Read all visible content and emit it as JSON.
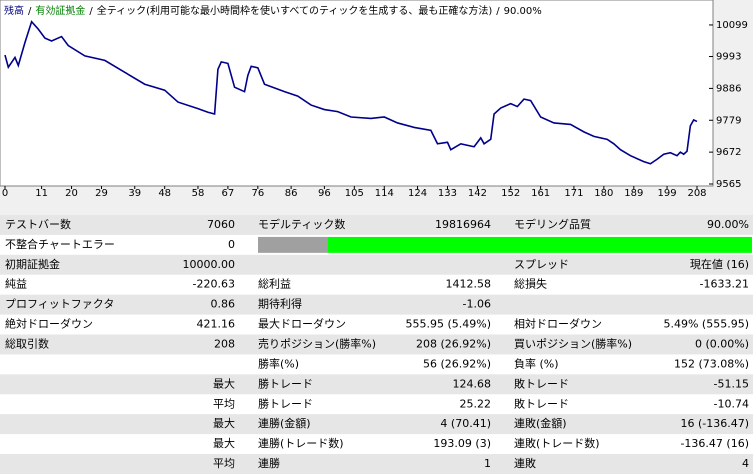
{
  "chart_data": {
    "type": "line",
    "header": [
      "残高",
      "有効証拠金",
      "全ティック(利用可能な最小時間枠を使いすべてのティックを生成する、最も正確な方法)",
      "90.00%"
    ],
    "header_colors": [
      "#000080",
      "#008000",
      "#000000",
      "#000000"
    ],
    "separator": "/",
    "x": [
      0,
      1,
      3,
      4,
      6,
      8,
      10,
      12,
      14,
      17,
      19,
      24,
      30,
      36,
      42,
      48,
      52,
      58,
      61,
      63,
      64,
      65,
      67,
      69,
      72,
      73,
      74,
      76,
      78,
      84,
      88,
      92,
      96,
      100,
      104,
      110,
      114,
      118,
      123,
      128,
      130,
      133,
      134,
      137,
      141,
      143,
      144,
      146,
      147,
      149,
      152,
      154,
      156,
      158,
      161,
      165,
      170,
      174,
      177,
      181,
      183,
      185,
      188,
      192,
      194,
      196,
      198,
      200,
      202,
      203,
      204,
      205,
      206,
      207,
      208
    ],
    "series": [
      {
        "name": "残高",
        "color": "#00008b",
        "values": [
          9998,
          9957,
          9990,
          9963,
          10040,
          10110,
          10085,
          10055,
          10045,
          10060,
          10030,
          9995,
          9980,
          9940,
          9900,
          9880,
          9840,
          9818,
          9806,
          9800,
          9950,
          9975,
          9970,
          9890,
          9875,
          9930,
          9960,
          9955,
          9900,
          9875,
          9860,
          9830,
          9815,
          9808,
          9790,
          9785,
          9790,
          9770,
          9755,
          9745,
          9700,
          9705,
          9680,
          9700,
          9690,
          9720,
          9700,
          9715,
          9800,
          9820,
          9835,
          9825,
          9850,
          9845,
          9790,
          9770,
          9765,
          9740,
          9725,
          9715,
          9700,
          9680,
          9660,
          9640,
          9633,
          9648,
          9665,
          9670,
          9660,
          9672,
          9665,
          9675,
          9760,
          9780,
          9775
        ]
      }
    ],
    "xlim": [
      0,
      208
    ],
    "xticks": [
      0,
      11,
      20,
      29,
      39,
      48,
      58,
      67,
      76,
      86,
      96,
      105,
      114,
      124,
      133,
      142,
      152,
      161,
      171,
      180,
      189,
      199,
      208
    ],
    "ylim": [
      9565,
      10166
    ],
    "yticks": [
      9565,
      9672,
      9779,
      9886,
      9993,
      10099
    ]
  },
  "table": {
    "rows": [
      [
        "テストバー数",
        "7060",
        "モデルティック数",
        "19816964",
        "モデリング品質",
        "90.00%"
      ],
      [
        "不整合チャートエラー",
        "0",
        null,
        null,
        null,
        null
      ],
      [
        "初期証拠金",
        "10000.00",
        null,
        null,
        "スプレッド",
        "現在値 (16)"
      ],
      [
        "純益",
        "-220.63",
        "総利益",
        "1412.58",
        "総損失",
        "-1633.21"
      ],
      [
        "プロフィットファクタ",
        "0.86",
        "期待利得",
        "-1.06",
        null,
        null
      ],
      [
        "絶対ドローダウン",
        "421.16",
        "最大ドローダウン",
        "555.95 (5.49%)",
        "相対ドローダウン",
        "5.49% (555.95)"
      ],
      [
        "総取引数",
        "208",
        "売りポジション(勝率%)",
        "208 (26.92%)",
        "買いポジション(勝率%)",
        "0 (0.00%)"
      ],
      [
        null,
        null,
        "勝率(%)",
        "56 (26.92%)",
        "負率 (%)",
        "152 (73.08%)"
      ],
      [
        null,
        "最大",
        "勝トレード",
        "124.68",
        "敗トレード",
        "-51.15"
      ],
      [
        null,
        "平均",
        "勝トレード",
        "25.22",
        "敗トレード",
        "-10.74"
      ],
      [
        null,
        "最大",
        "連勝(金額)",
        "4 (70.41)",
        "連敗(金額)",
        "16 (-136.47)"
      ],
      [
        null,
        "最大",
        "連勝(トレード数)",
        "193.09 (3)",
        "連敗(トレード数)",
        "-136.47 (16)"
      ],
      [
        null,
        "平均",
        "連勝",
        "1",
        "連敗",
        "4"
      ]
    ]
  }
}
